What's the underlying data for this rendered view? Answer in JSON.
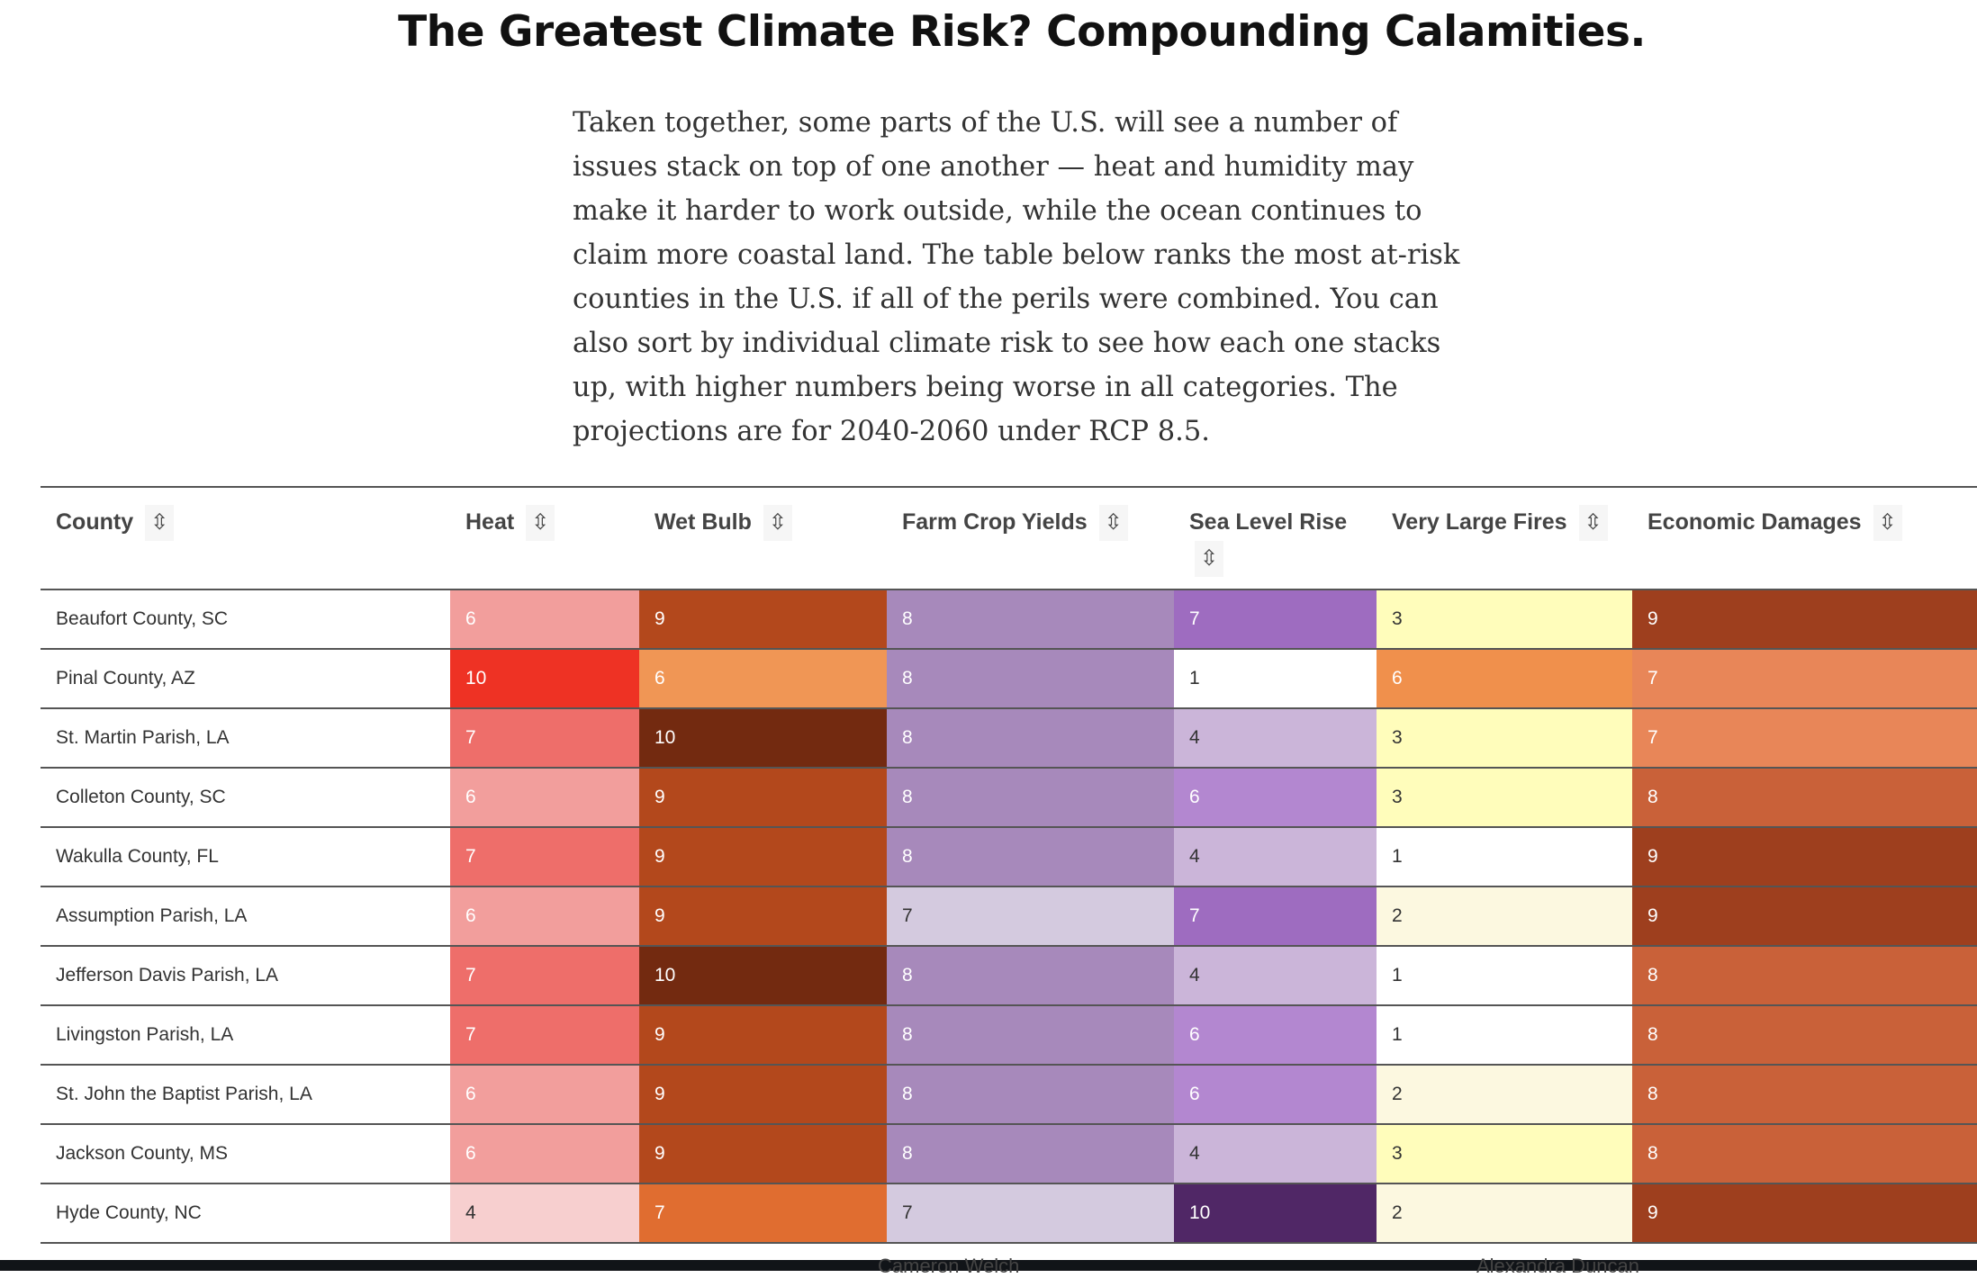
{
  "title": "The Greatest Climate Risk? Compounding Calamities.",
  "intro": "Taken together, some parts of the U.S. will see a number of issues stack on top of one another — heat and humidity may make it harder to work outside, while the ocean continues to claim more coastal land. The table below ranks the most at-risk counties in the U.S. if all of the perils were combined. You can also sort by individual climate risk to see how each one stacks up, with higher numbers being worse in all categories. The projections are for 2040-2060 under RCP 8.5.",
  "sort_icon": "⇳",
  "columns": [
    "County",
    "Heat",
    "Wet Bulb",
    "Farm Crop Yields",
    "Sea Level Rise",
    "Very Large Fires",
    "Economic Damages"
  ],
  "rows": [
    [
      "Beaufort County, SC",
      6,
      9,
      8,
      7,
      3,
      9
    ],
    [
      "Pinal County, AZ",
      10,
      6,
      8,
      1,
      6,
      7
    ],
    [
      "St. Martin Parish, LA",
      7,
      10,
      8,
      4,
      3,
      7
    ],
    [
      "Colleton County, SC",
      6,
      9,
      8,
      6,
      3,
      8
    ],
    [
      "Wakulla County, FL",
      7,
      9,
      8,
      4,
      1,
      9
    ],
    [
      "Assumption Parish, LA",
      6,
      9,
      7,
      7,
      2,
      9
    ],
    [
      "Jefferson Davis Parish, LA",
      7,
      10,
      8,
      4,
      1,
      8
    ],
    [
      "Livingston Parish, LA",
      7,
      9,
      8,
      6,
      1,
      8
    ],
    [
      "St. John the Baptist Parish, LA",
      6,
      9,
      8,
      6,
      2,
      8
    ],
    [
      "Jackson County, MS",
      6,
      9,
      8,
      4,
      3,
      8
    ],
    [
      "Hyde County, NC",
      4,
      7,
      7,
      10,
      2,
      9
    ]
  ],
  "colors": {
    "Heat": {
      "4": "#f7cfcf",
      "6": "#f29e9c",
      "7": "#ee6e6a",
      "10": "#ee3224"
    },
    "Wet Bulb": {
      "6": "#f09655",
      "7": "#e06d30",
      "9": "#b3481c",
      "10": "#732a10"
    },
    "Farm Crop Yields": {
      "7": "#d4cadf",
      "8": "#a789bb"
    },
    "Sea Level Rise": {
      "1": "#ffffff",
      "4": "#cbb5d9",
      "6": "#b387d0",
      "7": "#9e6cc0",
      "10": "#502766"
    },
    "Very Large Fires": {
      "1": "#ffffff",
      "2": "#fcf8e0",
      "3": "#fffdbb",
      "6": "#f0904c"
    },
    "Economic Damages": {
      "7": "#e88658",
      "8": "#c96139",
      "9": "#9e3f1e"
    }
  },
  "bottom_bar": [
    "Cameron Welch",
    "Alexandra Duncan"
  ]
}
